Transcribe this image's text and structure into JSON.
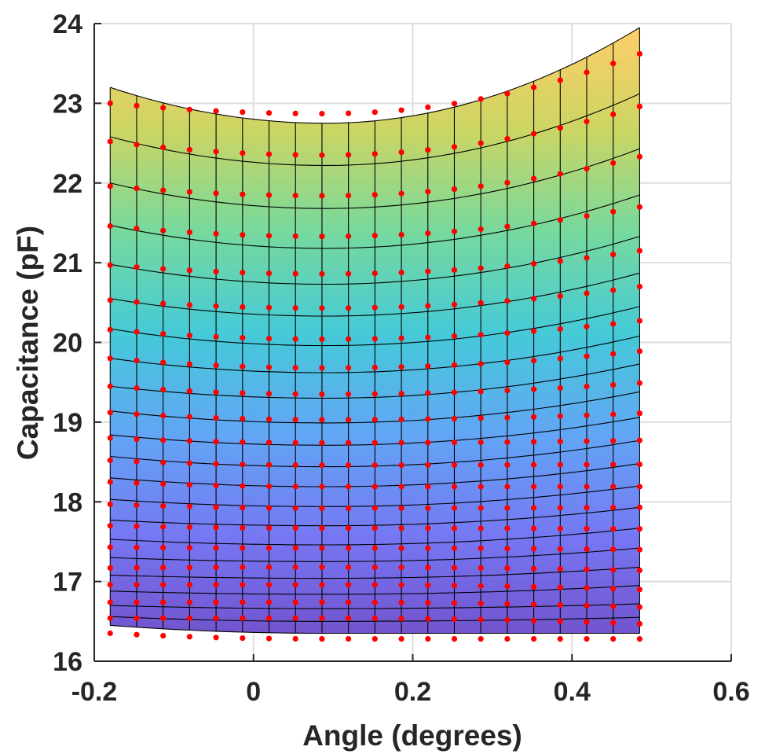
{
  "chart_data": {
    "type": "surface-contour-with-scatter",
    "title": "",
    "xlabel": "Angle (degrees)",
    "ylabel": "Capacitance (pF)",
    "xlim": [
      -0.2,
      0.6
    ],
    "ylim": [
      16,
      24
    ],
    "xticks": [
      -0.2,
      0,
      0.2,
      0.4,
      0.6
    ],
    "yticks": [
      16,
      17,
      18,
      19,
      20,
      21,
      22,
      23,
      24
    ],
    "xtick_labels": [
      "-0.2",
      "0",
      "0.2",
      "0.4",
      "0.6"
    ],
    "ytick_labels": [
      "16",
      "17",
      "18",
      "19",
      "20",
      "21",
      "22",
      "23",
      "24"
    ],
    "grid": true,
    "x_range_data": [
      -0.18,
      0.485
    ],
    "x_count": 21,
    "angle_min_x": 0.09,
    "curves_top_to_bottom": [
      {
        "y_at_min": 22.75,
        "y_left": 23.2,
        "y_right": 23.95
      },
      {
        "y_at_min": 22.22,
        "y_left": 22.58,
        "y_right": 23.12
      },
      {
        "y_at_min": 21.68,
        "y_left": 22.0,
        "y_right": 22.43
      },
      {
        "y_at_min": 21.18,
        "y_left": 21.47,
        "y_right": 21.85
      },
      {
        "y_at_min": 20.73,
        "y_left": 20.98,
        "y_right": 21.33
      },
      {
        "y_at_min": 20.33,
        "y_left": 20.55,
        "y_right": 20.87
      },
      {
        "y_at_min": 19.96,
        "y_left": 20.17,
        "y_right": 20.45
      },
      {
        "y_at_min": 19.62,
        "y_left": 19.8,
        "y_right": 20.08
      },
      {
        "y_at_min": 19.3,
        "y_left": 19.45,
        "y_right": 19.73
      },
      {
        "y_at_min": 18.99,
        "y_left": 19.14,
        "y_right": 19.38
      },
      {
        "y_at_min": 18.71,
        "y_left": 18.84,
        "y_right": 19.06
      },
      {
        "y_at_min": 18.44,
        "y_left": 18.57,
        "y_right": 18.77
      },
      {
        "y_at_min": 18.19,
        "y_left": 18.3,
        "y_right": 18.48
      },
      {
        "y_at_min": 17.94,
        "y_left": 18.03,
        "y_right": 18.2
      },
      {
        "y_at_min": 17.7,
        "y_left": 17.77,
        "y_right": 17.93
      },
      {
        "y_at_min": 17.46,
        "y_left": 17.53,
        "y_right": 17.67
      },
      {
        "y_at_min": 17.25,
        "y_left": 17.3,
        "y_right": 17.42
      },
      {
        "y_at_min": 17.04,
        "y_left": 17.08,
        "y_right": 17.18
      },
      {
        "y_at_min": 16.84,
        "y_left": 16.88,
        "y_right": 16.95
      },
      {
        "y_at_min": 16.66,
        "y_left": 16.7,
        "y_right": 16.72
      },
      {
        "y_at_min": 16.5,
        "y_left": 16.56,
        "y_right": 16.55
      },
      {
        "y_at_min": 16.35,
        "y_left": 16.45,
        "y_right": 16.35
      }
    ],
    "points_top_to_bottom": [
      {
        "y_at_min": 22.87,
        "y_left": 23.0,
        "y_right": 23.62
      },
      {
        "y_at_min": 22.35,
        "y_left": 22.52,
        "y_right": 22.96
      },
      {
        "y_at_min": 21.84,
        "y_left": 21.96,
        "y_right": 22.33
      },
      {
        "y_at_min": 21.33,
        "y_left": 21.46,
        "y_right": 21.7
      },
      {
        "y_at_min": 20.86,
        "y_left": 20.97,
        "y_right": 21.15
      },
      {
        "y_at_min": 20.43,
        "y_left": 20.53,
        "y_right": 20.7
      },
      {
        "y_at_min": 20.04,
        "y_left": 20.16,
        "y_right": 20.27
      },
      {
        "y_at_min": 19.68,
        "y_left": 19.8,
        "y_right": 19.89
      },
      {
        "y_at_min": 19.35,
        "y_left": 19.45,
        "y_right": 19.49
      },
      {
        "y_at_min": 19.03,
        "y_left": 19.12,
        "y_right": 19.11
      },
      {
        "y_at_min": 18.74,
        "y_left": 18.8,
        "y_right": 18.77
      },
      {
        "y_at_min": 18.46,
        "y_left": 18.52,
        "y_right": 18.47
      },
      {
        "y_at_min": 18.19,
        "y_left": 18.25,
        "y_right": 18.19
      },
      {
        "y_at_min": 17.92,
        "y_left": 17.97,
        "y_right": 17.93
      },
      {
        "y_at_min": 17.67,
        "y_left": 17.7,
        "y_right": 17.66
      },
      {
        "y_at_min": 17.42,
        "y_left": 17.43,
        "y_right": 17.4
      },
      {
        "y_at_min": 17.18,
        "y_left": 17.17,
        "y_right": 17.14
      },
      {
        "y_at_min": 16.96,
        "y_left": 16.96,
        "y_right": 16.9
      },
      {
        "y_at_min": 16.74,
        "y_left": 16.74,
        "y_right": 16.68
      },
      {
        "y_at_min": 16.54,
        "y_left": 16.54,
        "y_right": 16.47
      },
      {
        "y_at_min": 16.28,
        "y_left": 16.35,
        "y_right": 16.28
      }
    ],
    "colors": {
      "colormap": [
        "#6a48c8",
        "#6f6ff2",
        "#5aa0f5",
        "#3bc7d6",
        "#6fd798",
        "#c9d35a",
        "#ffcb62"
      ],
      "points": "#ff0000",
      "mesh_line": "#000000",
      "grid": "#dedede",
      "axis": "#262626"
    }
  }
}
